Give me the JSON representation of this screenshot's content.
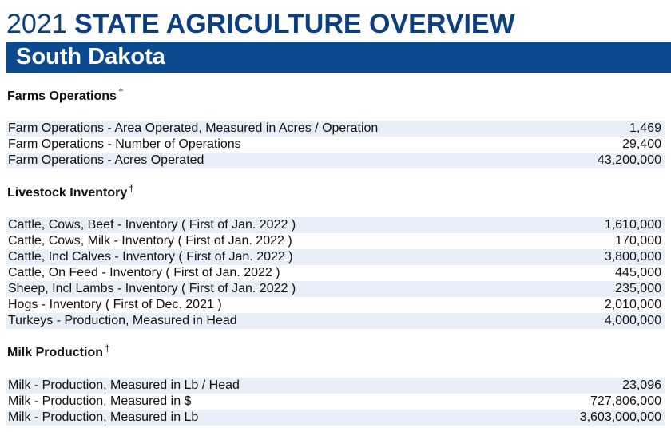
{
  "header": {
    "year": "2021",
    "title": "STATE AGRICULTURE OVERVIEW",
    "state": "South Dakota"
  },
  "sections": [
    {
      "heading": "Farms Operations",
      "marker": "†",
      "rows": [
        {
          "label": "Farm Operations - Area Operated, Measured in Acres / Operation",
          "value": "1,469"
        },
        {
          "label": "Farm Operations - Number of Operations",
          "value": "29,400"
        },
        {
          "label": "Farm Operations - Acres Operated",
          "value": "43,200,000"
        }
      ]
    },
    {
      "heading": "Livestock Inventory",
      "marker": "†",
      "rows": [
        {
          "label": "Cattle, Cows, Beef - Inventory ( First of Jan. 2022 )",
          "value": "1,610,000"
        },
        {
          "label": "Cattle, Cows, Milk - Inventory ( First of Jan. 2022 )",
          "value": "170,000"
        },
        {
          "label": "Cattle, Incl Calves - Inventory ( First of Jan. 2022 )",
          "value": "3,800,000"
        },
        {
          "label": "Cattle, On Feed - Inventory ( First of Jan. 2022 )",
          "value": "445,000"
        },
        {
          "label": "Sheep, Incl Lambs - Inventory ( First of Jan. 2022 )",
          "value": "235,000"
        },
        {
          "label": "Hogs - Inventory ( First of Dec. 2021 )",
          "value": "2,010,000"
        },
        {
          "label": "Turkeys - Production, Measured in Head",
          "value": "4,000,000"
        }
      ]
    },
    {
      "heading": "Milk Production",
      "marker": "†",
      "rows": [
        {
          "label": "Milk - Production, Measured in Lb / Head",
          "value": "23,096"
        },
        {
          "label": "Milk - Production, Measured in $",
          "value": "727,806,000"
        },
        {
          "label": "Milk - Production, Measured in Lb",
          "value": "3,603,000,000"
        }
      ]
    }
  ]
}
